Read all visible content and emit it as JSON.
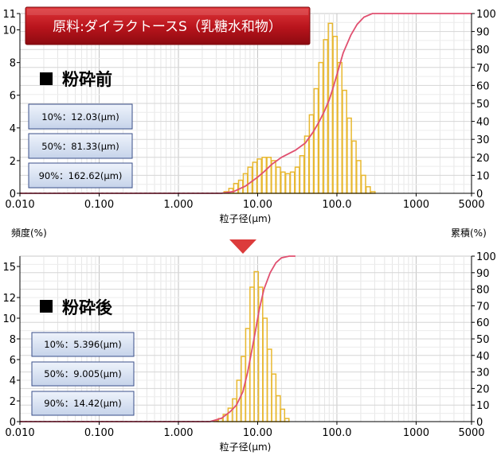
{
  "banner": {
    "text": "原料:ダイラクトースS（乳糖水和物）"
  },
  "label_freq": "頻度(%)",
  "label_cum": "累積(%)",
  "chart_data": [
    {
      "type": "bar",
      "heading": "粉砕前",
      "xlabel": "粒子径(μm)",
      "xscale": "log",
      "xlim": [
        0.01,
        5000
      ],
      "x_ticks": [
        "0.010",
        "0.100",
        "1.000",
        "10.00",
        "100.0",
        "1000",
        "5000"
      ],
      "ylim_left": [
        0,
        11
      ],
      "y_ticks_left": [
        "0",
        "2",
        "4",
        "6",
        "8",
        "10",
        "11"
      ],
      "ylim_right": [
        0,
        100
      ],
      "y_ticks_right": [
        "0",
        "10",
        "20",
        "30",
        "40",
        "50",
        "60",
        "70",
        "80",
        "90",
        "100"
      ],
      "stats": [
        "10%：12.03(μm)",
        "50%：81.33(μm)",
        "90%：162.62(μm)"
      ],
      "series": [
        {
          "kind": "bar",
          "axis": "left",
          "color": "#e8b830",
          "x": [
            4.0,
            4.6,
            5.3,
            6.1,
            7.0,
            8.0,
            9.2,
            10.5,
            12.1,
            13.9,
            15.9,
            18.2,
            20.9,
            24.0,
            27.5,
            31.6,
            36.2,
            41.6,
            47.7,
            54.7,
            62.8,
            72.0,
            82.7,
            94.9,
            108.9,
            124.9,
            143.3,
            164.5,
            188.7,
            216.6,
            248.5,
            285.1,
            327.2
          ],
          "values": [
            0.1,
            0.3,
            0.6,
            0.8,
            1.2,
            1.6,
            1.9,
            2.1,
            2.2,
            2.2,
            2.0,
            1.6,
            1.3,
            1.2,
            1.3,
            1.6,
            2.3,
            3.5,
            4.8,
            6.4,
            8.0,
            9.4,
            10.4,
            9.6,
            8.0,
            6.3,
            4.6,
            3.2,
            2.0,
            1.1,
            0.4,
            0.1,
            0.0
          ]
        },
        {
          "kind": "line",
          "axis": "right",
          "color": "#e05070",
          "x": [
            0.01,
            3.5,
            5.0,
            7.0,
            10.0,
            12.0,
            15.0,
            20.0,
            30.0,
            40.0,
            50.0,
            60.0,
            70.0,
            80.0,
            90.0,
            100.0,
            120.0,
            150.0,
            180.0,
            220.0,
            280.0,
            350.0,
            5000.0
          ],
          "values": [
            0,
            0,
            1,
            4,
            9,
            12,
            16,
            20,
            24,
            28,
            34,
            40,
            46,
            52,
            59,
            66,
            78,
            88,
            94,
            98,
            100,
            100,
            100
          ]
        }
      ]
    },
    {
      "type": "bar",
      "heading": "粉砕後",
      "xlabel": "粒子径(μm)",
      "xscale": "log",
      "xlim": [
        0.01,
        5000
      ],
      "x_ticks": [
        "0.010",
        "0.100",
        "1.000",
        "10.00",
        "100.0",
        "1000",
        "5000"
      ],
      "ylim_left": [
        0,
        16
      ],
      "y_ticks_left": [
        "0",
        "2",
        "4",
        "6",
        "8",
        "10",
        "12",
        "15"
      ],
      "ylim_right": [
        0,
        100
      ],
      "y_ticks_right": [
        "0",
        "10",
        "20",
        "30",
        "40",
        "50",
        "60",
        "70",
        "80",
        "90",
        "100"
      ],
      "stats": [
        "10%：5.396(μm)",
        "50%：9.005(μm)",
        "90%：14.42(μm)"
      ],
      "series": [
        {
          "kind": "bar",
          "axis": "left",
          "color": "#e8b830",
          "x": [
            3.0,
            3.4,
            3.9,
            4.5,
            5.1,
            5.8,
            6.6,
            7.5,
            8.5,
            9.6,
            10.9,
            12.4,
            14.1,
            16.0,
            18.2,
            20.6,
            23.4
          ],
          "values": [
            0.1,
            0.3,
            0.7,
            1.3,
            2.2,
            4.0,
            6.3,
            9.0,
            13.0,
            14.5,
            13.0,
            10.0,
            7.0,
            4.6,
            2.5,
            1.2,
            0.3
          ]
        },
        {
          "kind": "line",
          "axis": "right",
          "color": "#e05070",
          "x": [
            0.01,
            2.5,
            3.5,
            4.5,
            5.4,
            6.5,
            7.5,
            9.0,
            10.5,
            12.0,
            14.4,
            17.0,
            20.0,
            25.0,
            30.0
          ],
          "values": [
            0,
            0,
            2,
            6,
            10,
            18,
            30,
            50,
            68,
            80,
            90,
            96,
            99,
            100,
            100
          ]
        }
      ]
    }
  ]
}
